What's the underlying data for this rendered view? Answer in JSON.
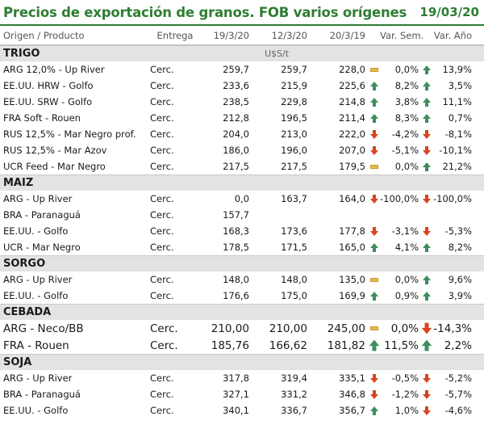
{
  "title": "Precios de exportación de granos. FOB varios orígenes",
  "date": "19/03/20",
  "columns": {
    "product": "Origen / Producto",
    "delivery": "Entrega",
    "d1": "19/3/20",
    "d2": "12/3/20",
    "d3": "20/3/19",
    "var_week": "Var. Sem.",
    "var_year": "Var. Año"
  },
  "unit": "U$S/t",
  "colors": {
    "title": "#2e7d32",
    "up": "#3e8e5e",
    "down": "#d9441f",
    "flat": "#e7b94a",
    "section_bg": "#e3e3e3"
  },
  "sections": [
    {
      "name": "TRIGO",
      "rows": [
        {
          "name": "ARG 12,0% - Up River",
          "delivery": "Cerc.",
          "v1": "259,7",
          "v2": "259,7",
          "v3": "228,0",
          "i1": "flat",
          "vs": "0,0%",
          "i2": "up",
          "va": "13,9%"
        },
        {
          "name": "EE.UU. HRW - Golfo",
          "delivery": "Cerc.",
          "v1": "233,6",
          "v2": "215,9",
          "v3": "225,6",
          "i1": "up",
          "vs": "8,2%",
          "i2": "up",
          "va": "3,5%"
        },
        {
          "name": "EE.UU. SRW - Golfo",
          "delivery": "Cerc.",
          "v1": "238,5",
          "v2": "229,8",
          "v3": "214,8",
          "i1": "up",
          "vs": "3,8%",
          "i2": "up",
          "va": "11,1%"
        },
        {
          "name": "FRA Soft - Rouen",
          "delivery": "Cerc.",
          "v1": "212,8",
          "v2": "196,5",
          "v3": "211,4",
          "i1": "up",
          "vs": "8,3%",
          "i2": "up",
          "va": "0,7%"
        },
        {
          "name": "RUS 12,5% - Mar Negro prof.",
          "delivery": "Cerc.",
          "v1": "204,0",
          "v2": "213,0",
          "v3": "222,0",
          "i1": "down",
          "vs": "-4,2%",
          "i2": "down",
          "va": "-8,1%"
        },
        {
          "name": "RUS 12,5% - Mar Azov",
          "delivery": "Cerc.",
          "v1": "186,0",
          "v2": "196,0",
          "v3": "207,0",
          "i1": "down",
          "vs": "-5,1%",
          "i2": "down",
          "va": "-10,1%"
        },
        {
          "name": "UCR Feed - Mar Negro",
          "delivery": "Cerc.",
          "v1": "217,5",
          "v2": "217,5",
          "v3": "179,5",
          "i1": "flat",
          "vs": "0,0%",
          "i2": "up",
          "va": "21,2%"
        }
      ]
    },
    {
      "name": "MAIZ",
      "rows": [
        {
          "name": "ARG - Up River",
          "delivery": "Cerc.",
          "v1": "0,0",
          "v2": "163,7",
          "v3": "164,0",
          "i1": "down",
          "vs": "-100,0%",
          "i2": "down",
          "va": "-100,0%"
        },
        {
          "name": "BRA - Paranaguá",
          "delivery": "Cerc.",
          "v1": "157,7",
          "v2": "",
          "v3": "",
          "i1": "",
          "vs": "",
          "i2": "",
          "va": ""
        },
        {
          "name": "EE.UU. - Golfo",
          "delivery": "Cerc.",
          "v1": "168,3",
          "v2": "173,6",
          "v3": "177,8",
          "i1": "down",
          "vs": "-3,1%",
          "i2": "down",
          "va": "-5,3%"
        },
        {
          "name": "UCR - Mar Negro",
          "delivery": "Cerc.",
          "v1": "178,5",
          "v2": "171,5",
          "v3": "165,0",
          "i1": "up",
          "vs": "4,1%",
          "i2": "up",
          "va": "8,2%"
        }
      ]
    },
    {
      "name": "SORGO",
      "rows": [
        {
          "name": "ARG - Up River",
          "delivery": "Cerc.",
          "v1": "148,0",
          "v2": "148,0",
          "v3": "135,0",
          "i1": "flat",
          "vs": "0,0%",
          "i2": "up",
          "va": "9,6%"
        },
        {
          "name": "EE.UU. - Golfo",
          "delivery": "Cerc.",
          "v1": "176,6",
          "v2": "175,0",
          "v3": "169,9",
          "i1": "up",
          "vs": "0,9%",
          "i2": "up",
          "va": "3,9%"
        }
      ]
    },
    {
      "name": "CEBADA",
      "big": true,
      "rows": [
        {
          "name": "ARG - Neco/BB",
          "delivery": "Cerc.",
          "v1": "210,00",
          "v2": "210,00",
          "v3": "245,00",
          "i1": "flat",
          "vs": "0,0%",
          "i2": "down",
          "va": "-14,3%"
        },
        {
          "name": "FRA - Rouen",
          "delivery": "Cerc.",
          "v1": "185,76",
          "v2": "166,62",
          "v3": "181,82",
          "i1": "up",
          "vs": "11,5%",
          "i2": "up",
          "va": "2,2%"
        }
      ]
    },
    {
      "name": "SOJA",
      "rows": [
        {
          "name": "ARG - Up River",
          "delivery": "Cerc.",
          "v1": "317,8",
          "v2": "319,4",
          "v3": "335,1",
          "i1": "down",
          "vs": "-0,5%",
          "i2": "down",
          "va": "-5,2%"
        },
        {
          "name": "BRA - Paranaguá",
          "delivery": "Cerc.",
          "v1": "327,1",
          "v2": "331,2",
          "v3": "346,8",
          "i1": "down",
          "vs": "-1,2%",
          "i2": "down",
          "va": "-5,7%"
        },
        {
          "name": "EE.UU. - Golfo",
          "delivery": "Cerc.",
          "v1": "340,1",
          "v2": "336,7",
          "v3": "356,7",
          "i1": "up",
          "vs": "1,0%",
          "i2": "down",
          "va": "-4,6%"
        }
      ]
    }
  ]
}
